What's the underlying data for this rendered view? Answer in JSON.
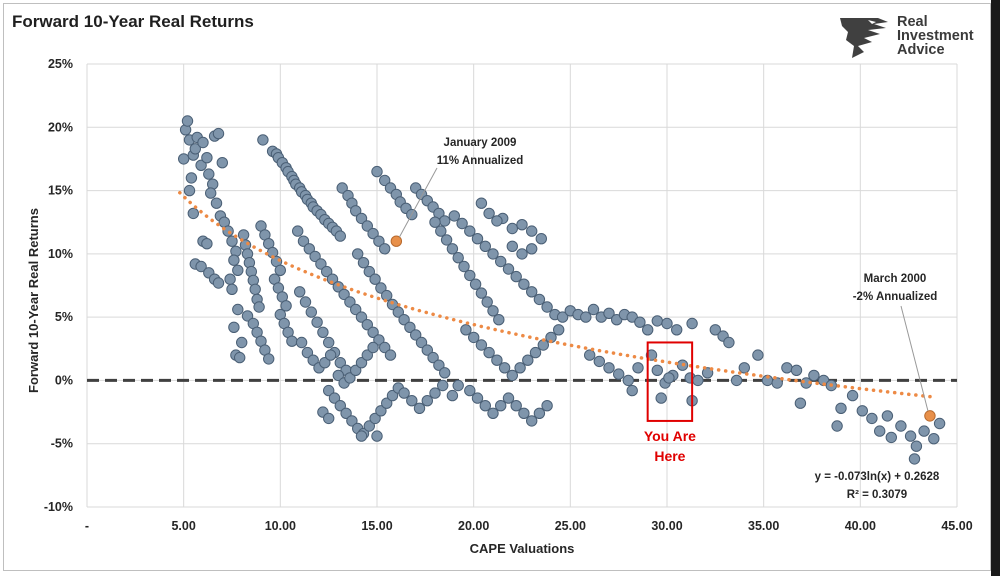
{
  "chart_data": {
    "type": "scatter",
    "title": "Forward 10-Year Real Returns",
    "xlabel": "CAPE Valuations",
    "ylabel": "Forward 10-Year Real Returns",
    "xlim": [
      0,
      45
    ],
    "ylim": [
      -0.1,
      0.25
    ],
    "x_ticks": [
      {
        "value": 0,
        "label": "-"
      },
      {
        "value": 5,
        "label": "5.00"
      },
      {
        "value": 10,
        "label": "10.00"
      },
      {
        "value": 15,
        "label": "15.00"
      },
      {
        "value": 20,
        "label": "20.00"
      },
      {
        "value": 25,
        "label": "25.00"
      },
      {
        "value": 30,
        "label": "30.00"
      },
      {
        "value": 35,
        "label": "35.00"
      },
      {
        "value": 40,
        "label": "40.00"
      },
      {
        "value": 45,
        "label": "45.00"
      }
    ],
    "y_ticks": [
      {
        "value": 0.25,
        "label": "25%"
      },
      {
        "value": 0.2,
        "label": "20%"
      },
      {
        "value": 0.15,
        "label": "15%"
      },
      {
        "value": 0.1,
        "label": "10%"
      },
      {
        "value": 0.05,
        "label": "5%"
      },
      {
        "value": 0.0,
        "label": "0%"
      },
      {
        "value": -0.05,
        "label": "-5%"
      },
      {
        "value": -0.1,
        "label": "-10%"
      }
    ],
    "grid": true,
    "point_color": "#7f95ab",
    "highlight_color": "#e8904a",
    "trendline": {
      "a": -0.073,
      "b": 0.2628,
      "x_range": [
        4.8,
        44
      ],
      "color": "#ed8a45",
      "style": "dotted"
    },
    "equation_lines": [
      "y = -0.073ln(x) + 0.2628",
      "R² = 0.3079"
    ],
    "zero_line": {
      "value": 0,
      "color": "#404040",
      "style": "dashed"
    },
    "highlight_box": {
      "x_range": [
        29.0,
        31.3
      ],
      "y_range": [
        -0.032,
        0.03
      ],
      "color": "#e00000",
      "label_lines": [
        "You Are",
        "Here"
      ]
    },
    "annotations": [
      {
        "lines": [
          "January 2009",
          "11% Annualized"
        ],
        "point": [
          16.0,
          0.11
        ]
      },
      {
        "lines": [
          "March 2000",
          "-2% Annualized"
        ],
        "point": [
          43.6,
          -0.028
        ]
      }
    ],
    "points": [
      [
        5.0,
        0.175
      ],
      [
        5.1,
        0.198
      ],
      [
        5.2,
        0.205
      ],
      [
        5.3,
        0.19
      ],
      [
        5.4,
        0.16
      ],
      [
        5.3,
        0.15
      ],
      [
        5.5,
        0.178
      ],
      [
        5.6,
        0.183
      ],
      [
        5.7,
        0.192
      ],
      [
        5.9,
        0.17
      ],
      [
        6.0,
        0.188
      ],
      [
        6.2,
        0.176
      ],
      [
        6.3,
        0.163
      ],
      [
        6.5,
        0.155
      ],
      [
        6.4,
        0.148
      ],
      [
        6.6,
        0.193
      ],
      [
        6.8,
        0.195
      ],
      [
        7.0,
        0.172
      ],
      [
        6.7,
        0.14
      ],
      [
        6.9,
        0.13
      ],
      [
        5.5,
        0.132
      ],
      [
        5.6,
        0.092
      ],
      [
        5.9,
        0.09
      ],
      [
        6.0,
        0.11
      ],
      [
        6.2,
        0.108
      ],
      [
        6.3,
        0.085
      ],
      [
        6.6,
        0.08
      ],
      [
        6.8,
        0.077
      ],
      [
        7.1,
        0.125
      ],
      [
        7.3,
        0.118
      ],
      [
        7.5,
        0.11
      ],
      [
        7.7,
        0.102
      ],
      [
        7.6,
        0.095
      ],
      [
        7.8,
        0.087
      ],
      [
        7.4,
        0.08
      ],
      [
        7.6,
        0.042
      ],
      [
        7.7,
        0.02
      ],
      [
        7.9,
        0.018
      ],
      [
        8.0,
        0.03
      ],
      [
        7.8,
        0.056
      ],
      [
        7.5,
        0.072
      ],
      [
        8.1,
        0.115
      ],
      [
        8.2,
        0.107
      ],
      [
        8.3,
        0.1
      ],
      [
        8.4,
        0.093
      ],
      [
        8.5,
        0.086
      ],
      [
        8.6,
        0.079
      ],
      [
        8.7,
        0.072
      ],
      [
        8.8,
        0.064
      ],
      [
        8.9,
        0.058
      ],
      [
        8.3,
        0.051
      ],
      [
        8.6,
        0.045
      ],
      [
        8.8,
        0.038
      ],
      [
        9.0,
        0.031
      ],
      [
        9.2,
        0.024
      ],
      [
        9.4,
        0.017
      ],
      [
        9.0,
        0.122
      ],
      [
        9.2,
        0.115
      ],
      [
        9.4,
        0.108
      ],
      [
        9.6,
        0.101
      ],
      [
        9.8,
        0.094
      ],
      [
        10.0,
        0.087
      ],
      [
        9.7,
        0.08
      ],
      [
        9.9,
        0.073
      ],
      [
        10.1,
        0.066
      ],
      [
        10.3,
        0.059
      ],
      [
        10.0,
        0.052
      ],
      [
        10.2,
        0.045
      ],
      [
        10.4,
        0.038
      ],
      [
        10.6,
        0.031
      ],
      [
        9.1,
        0.19
      ],
      [
        9.6,
        0.181
      ],
      [
        9.8,
        0.179
      ],
      [
        9.9,
        0.176
      ],
      [
        10.1,
        0.172
      ],
      [
        10.3,
        0.168
      ],
      [
        10.4,
        0.165
      ],
      [
        10.6,
        0.161
      ],
      [
        10.7,
        0.158
      ],
      [
        10.8,
        0.155
      ],
      [
        11.0,
        0.152
      ],
      [
        11.1,
        0.149
      ],
      [
        11.3,
        0.146
      ],
      [
        11.4,
        0.143
      ],
      [
        11.6,
        0.14
      ],
      [
        11.7,
        0.137
      ],
      [
        11.9,
        0.134
      ],
      [
        12.1,
        0.131
      ],
      [
        12.3,
        0.127
      ],
      [
        12.5,
        0.124
      ],
      [
        12.7,
        0.121
      ],
      [
        12.9,
        0.118
      ],
      [
        13.1,
        0.114
      ],
      [
        10.9,
        0.118
      ],
      [
        11.2,
        0.11
      ],
      [
        11.5,
        0.104
      ],
      [
        11.8,
        0.098
      ],
      [
        12.1,
        0.092
      ],
      [
        12.4,
        0.086
      ],
      [
        12.7,
        0.08
      ],
      [
        13.0,
        0.074
      ],
      [
        13.3,
        0.068
      ],
      [
        13.6,
        0.062
      ],
      [
        13.9,
        0.056
      ],
      [
        14.2,
        0.05
      ],
      [
        14.5,
        0.044
      ],
      [
        14.8,
        0.038
      ],
      [
        15.1,
        0.032
      ],
      [
        15.4,
        0.026
      ],
      [
        15.7,
        0.02
      ],
      [
        11.0,
        0.07
      ],
      [
        11.3,
        0.062
      ],
      [
        11.6,
        0.054
      ],
      [
        11.9,
        0.046
      ],
      [
        12.2,
        0.038
      ],
      [
        12.5,
        0.03
      ],
      [
        12.8,
        0.022
      ],
      [
        13.1,
        0.014
      ],
      [
        13.4,
        0.008
      ],
      [
        11.1,
        0.03
      ],
      [
        11.4,
        0.022
      ],
      [
        11.7,
        0.016
      ],
      [
        12.0,
        0.01
      ],
      [
        12.3,
        0.014
      ],
      [
        12.6,
        0.02
      ],
      [
        13.2,
        0.152
      ],
      [
        13.5,
        0.146
      ],
      [
        13.7,
        0.14
      ],
      [
        13.9,
        0.134
      ],
      [
        14.2,
        0.128
      ],
      [
        14.5,
        0.122
      ],
      [
        14.8,
        0.116
      ],
      [
        15.1,
        0.11
      ],
      [
        15.4,
        0.104
      ],
      [
        15.0,
        0.165
      ],
      [
        15.4,
        0.158
      ],
      [
        15.7,
        0.152
      ],
      [
        16.0,
        0.147
      ],
      [
        16.2,
        0.141
      ],
      [
        16.5,
        0.136
      ],
      [
        16.8,
        0.131
      ],
      [
        17.0,
        0.152
      ],
      [
        17.3,
        0.147
      ],
      [
        17.6,
        0.142
      ],
      [
        17.9,
        0.137
      ],
      [
        18.2,
        0.132
      ],
      [
        18.5,
        0.126
      ],
      [
        14.0,
        0.1
      ],
      [
        14.3,
        0.093
      ],
      [
        14.6,
        0.086
      ],
      [
        14.9,
        0.08
      ],
      [
        15.2,
        0.073
      ],
      [
        15.5,
        0.067
      ],
      [
        15.8,
        0.06
      ],
      [
        16.1,
        0.054
      ],
      [
        16.4,
        0.048
      ],
      [
        16.7,
        0.042
      ],
      [
        17.0,
        0.036
      ],
      [
        17.3,
        0.03
      ],
      [
        17.6,
        0.024
      ],
      [
        17.9,
        0.018
      ],
      [
        18.2,
        0.012
      ],
      [
        18.5,
        0.006
      ],
      [
        12.5,
        -0.008
      ],
      [
        12.8,
        -0.014
      ],
      [
        13.1,
        -0.02
      ],
      [
        13.4,
        -0.026
      ],
      [
        13.7,
        -0.032
      ],
      [
        14.0,
        -0.038
      ],
      [
        14.3,
        -0.042
      ],
      [
        14.6,
        -0.036
      ],
      [
        14.9,
        -0.03
      ],
      [
        15.2,
        -0.024
      ],
      [
        15.5,
        -0.018
      ],
      [
        15.8,
        -0.012
      ],
      [
        16.1,
        -0.006
      ],
      [
        13.0,
        0.004
      ],
      [
        13.3,
        -0.002
      ],
      [
        13.6,
        0.002
      ],
      [
        13.9,
        0.008
      ],
      [
        14.2,
        0.014
      ],
      [
        14.5,
        0.02
      ],
      [
        14.8,
        0.026
      ],
      [
        12.2,
        -0.025
      ],
      [
        12.5,
        -0.03
      ],
      [
        14.2,
        -0.044
      ],
      [
        15.0,
        -0.044
      ],
      [
        16.4,
        -0.01
      ],
      [
        16.8,
        -0.016
      ],
      [
        17.2,
        -0.022
      ],
      [
        17.6,
        -0.016
      ],
      [
        18.0,
        -0.01
      ],
      [
        18.4,
        -0.004
      ],
      [
        18.0,
        0.125
      ],
      [
        18.3,
        0.118
      ],
      [
        18.6,
        0.111
      ],
      [
        18.9,
        0.104
      ],
      [
        19.2,
        0.097
      ],
      [
        19.5,
        0.09
      ],
      [
        19.8,
        0.083
      ],
      [
        20.1,
        0.076
      ],
      [
        20.4,
        0.069
      ],
      [
        20.7,
        0.062
      ],
      [
        21.0,
        0.055
      ],
      [
        21.3,
        0.048
      ],
      [
        19.0,
        0.13
      ],
      [
        19.4,
        0.124
      ],
      [
        19.8,
        0.118
      ],
      [
        20.2,
        0.112
      ],
      [
        20.6,
        0.106
      ],
      [
        21.0,
        0.1
      ],
      [
        21.4,
        0.094
      ],
      [
        21.8,
        0.088
      ],
      [
        22.2,
        0.082
      ],
      [
        22.6,
        0.076
      ],
      [
        23.0,
        0.07
      ],
      [
        23.4,
        0.064
      ],
      [
        23.8,
        0.058
      ],
      [
        24.2,
        0.052
      ],
      [
        24.6,
        0.05
      ],
      [
        25.0,
        0.055
      ],
      [
        25.4,
        0.052
      ],
      [
        25.8,
        0.05
      ],
      [
        26.2,
        0.056
      ],
      [
        26.6,
        0.05
      ],
      [
        27.0,
        0.053
      ],
      [
        27.4,
        0.048
      ],
      [
        27.8,
        0.052
      ],
      [
        28.2,
        0.05
      ],
      [
        28.6,
        0.046
      ],
      [
        29.0,
        0.04
      ],
      [
        29.5,
        0.047
      ],
      [
        30.0,
        0.045
      ],
      [
        30.5,
        0.04
      ],
      [
        31.3,
        0.045
      ],
      [
        21.5,
        0.128
      ],
      [
        22.0,
        0.12
      ],
      [
        22.5,
        0.123
      ],
      [
        23.0,
        0.118
      ],
      [
        23.5,
        0.112
      ],
      [
        22.0,
        0.106
      ],
      [
        22.5,
        0.1
      ],
      [
        23.0,
        0.104
      ],
      [
        20.4,
        0.14
      ],
      [
        20.8,
        0.132
      ],
      [
        21.2,
        0.126
      ],
      [
        19.6,
        0.04
      ],
      [
        20.0,
        0.034
      ],
      [
        20.4,
        0.028
      ],
      [
        20.8,
        0.022
      ],
      [
        21.2,
        0.016
      ],
      [
        21.6,
        0.01
      ],
      [
        22.0,
        0.004
      ],
      [
        22.4,
        0.01
      ],
      [
        22.8,
        0.016
      ],
      [
        23.2,
        0.022
      ],
      [
        23.6,
        0.028
      ],
      [
        24.0,
        0.034
      ],
      [
        24.4,
        0.04
      ],
      [
        19.8,
        -0.008
      ],
      [
        20.2,
        -0.014
      ],
      [
        20.6,
        -0.02
      ],
      [
        21.0,
        -0.026
      ],
      [
        21.4,
        -0.02
      ],
      [
        21.8,
        -0.014
      ],
      [
        22.2,
        -0.02
      ],
      [
        22.6,
        -0.026
      ],
      [
        23.0,
        -0.032
      ],
      [
        23.4,
        -0.026
      ],
      [
        23.8,
        -0.02
      ],
      [
        19.2,
        -0.004
      ],
      [
        18.9,
        -0.012
      ],
      [
        26.0,
        0.02
      ],
      [
        26.5,
        0.015
      ],
      [
        27.0,
        0.01
      ],
      [
        27.5,
        0.005
      ],
      [
        28.0,
        0.0
      ],
      [
        28.5,
        0.01
      ],
      [
        29.2,
        0.02
      ],
      [
        29.5,
        0.008
      ],
      [
        29.9,
        -0.002
      ],
      [
        30.3,
        0.004
      ],
      [
        30.8,
        0.012
      ],
      [
        31.2,
        0.002
      ],
      [
        29.7,
        -0.014
      ],
      [
        31.3,
        -0.016
      ],
      [
        28.2,
        -0.008
      ],
      [
        30.1,
        0.002
      ],
      [
        31.6,
        0.0
      ],
      [
        32.1,
        0.006
      ],
      [
        32.5,
        0.04
      ],
      [
        32.9,
        0.035
      ],
      [
        33.2,
        0.03
      ],
      [
        33.6,
        0.0
      ],
      [
        34.0,
        0.01
      ],
      [
        34.7,
        0.02
      ],
      [
        35.2,
        0.0
      ],
      [
        35.7,
        -0.002
      ],
      [
        36.2,
        0.01
      ],
      [
        36.7,
        0.008
      ],
      [
        37.2,
        -0.002
      ],
      [
        37.6,
        0.004
      ],
      [
        38.1,
        0.0
      ],
      [
        38.5,
        -0.004
      ],
      [
        39.0,
        -0.022
      ],
      [
        39.6,
        -0.012
      ],
      [
        40.1,
        -0.024
      ],
      [
        40.6,
        -0.03
      ],
      [
        41.0,
        -0.04
      ],
      [
        41.6,
        -0.045
      ],
      [
        42.1,
        -0.036
      ],
      [
        42.6,
        -0.044
      ],
      [
        42.9,
        -0.052
      ],
      [
        43.3,
        -0.04
      ],
      [
        43.8,
        -0.046
      ],
      [
        44.1,
        -0.034
      ],
      [
        36.9,
        -0.018
      ],
      [
        38.8,
        -0.036
      ],
      [
        41.4,
        -0.028
      ],
      [
        42.8,
        -0.062
      ]
    ]
  }
}
